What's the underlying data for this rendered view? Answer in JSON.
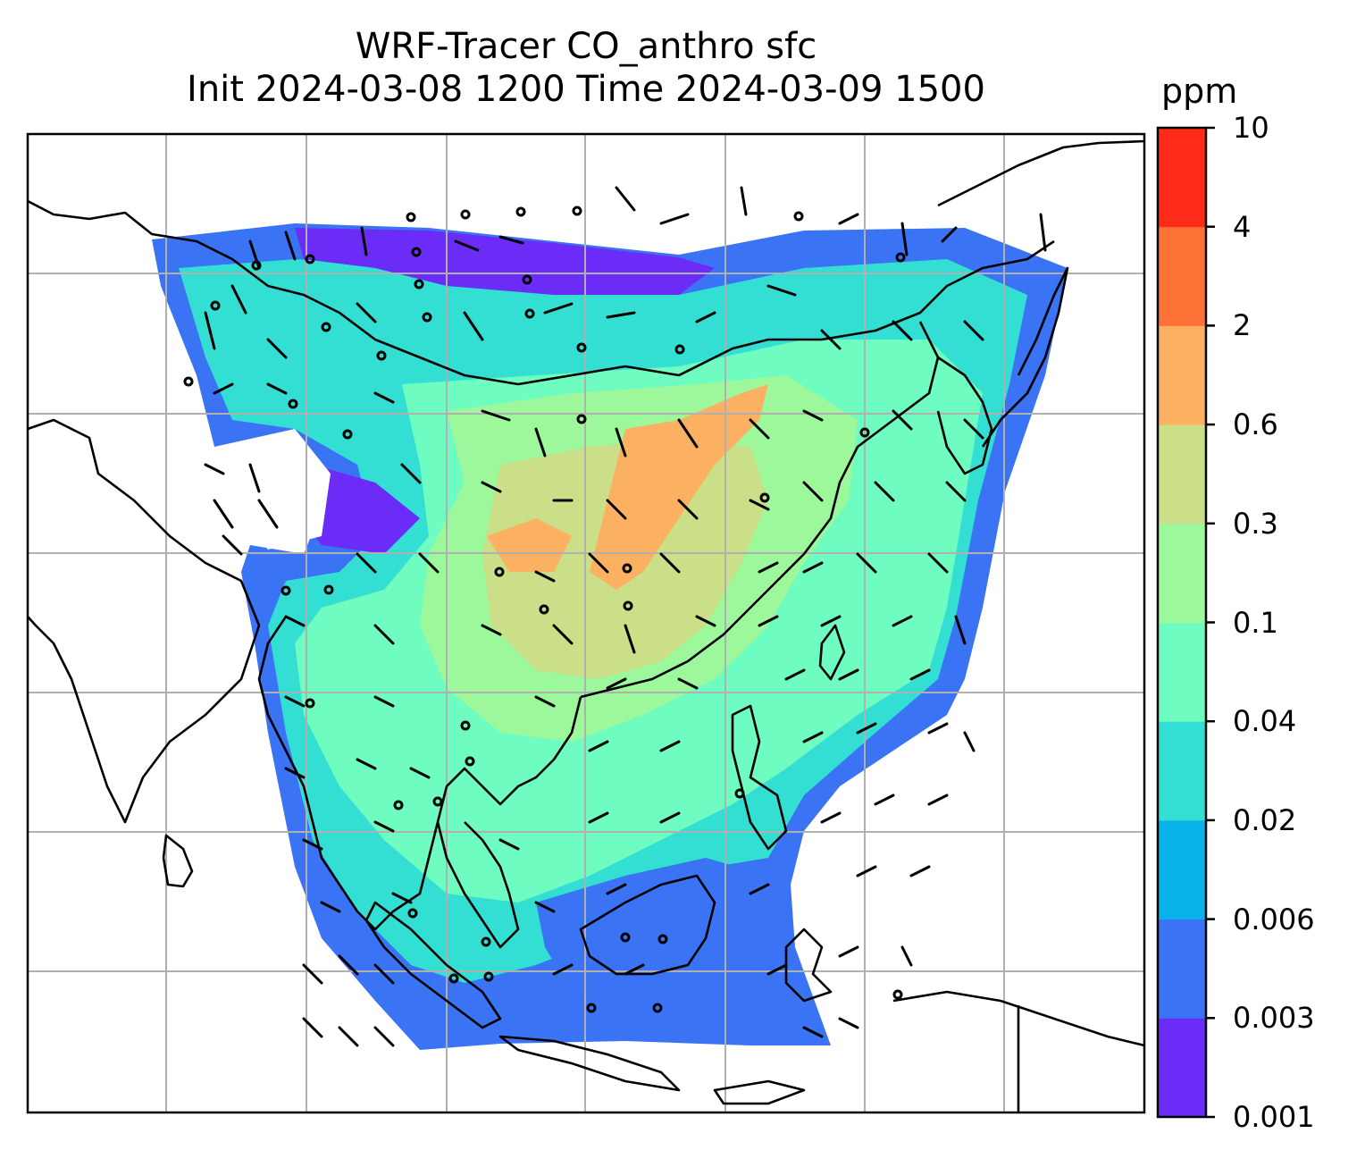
{
  "title": {
    "line1": "WRF-Tracer CO_anthro sfc",
    "line2": "Init 2024-03-08 1200 Time 2024-03-09 1500"
  },
  "colorbar": {
    "unit": "ppm",
    "ticks": [
      "0.001",
      "0.003",
      "0.006",
      "0.02",
      "0.04",
      "0.1",
      "0.3",
      "0.6",
      "2",
      "4",
      "10"
    ],
    "colors": [
      "#6a2cf6",
      "#3a73f4",
      "#09b2ea",
      "#32dfd2",
      "#6efcc0",
      "#9df89c",
      "#cadf87",
      "#fcb062",
      "#ff7339",
      "#ff2a17"
    ]
  },
  "map": {
    "background": "#ffffff",
    "gridline_color": "#b0b0b0",
    "coastline_color": "#000000",
    "field_description_colors": {
      "low": "#6a2cf6",
      "mid": "#32dfd2",
      "high": "#fcb062"
    }
  }
}
